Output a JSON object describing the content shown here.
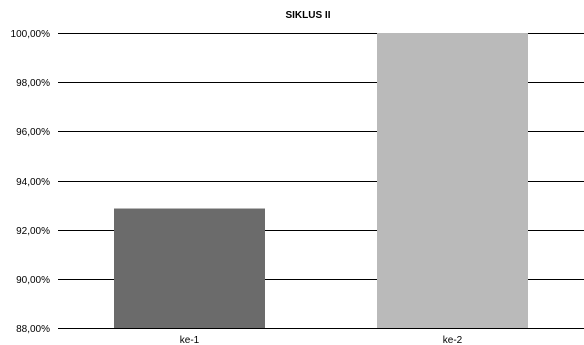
{
  "chart_data": {
    "type": "bar",
    "title": "SIKLUS II",
    "categories": [
      "ke-1",
      "ke-2"
    ],
    "values": [
      92.86,
      100.0
    ],
    "colors": [
      "#6b6b6b",
      "#bababa"
    ],
    "ylim": [
      88,
      100
    ],
    "yticks": [
      88,
      90,
      92,
      94,
      96,
      98,
      100
    ],
    "ytick_labels": [
      "88,00%",
      "90,00%",
      "92,00%",
      "94,00%",
      "96,00%",
      "98,00%",
      "100,00%"
    ],
    "grid": true,
    "legend": "none"
  }
}
